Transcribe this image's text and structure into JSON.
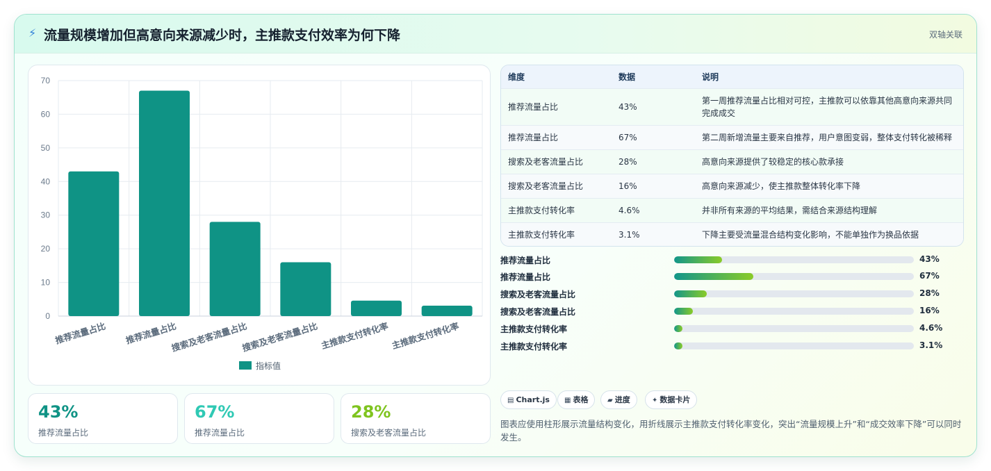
{
  "header": {
    "icon": "lightning-icon",
    "title": "流量规模增加但高意向来源减少时，主推款支付效率为何下降",
    "tag": "双轴关联"
  },
  "chart_data": {
    "type": "bar",
    "categories": [
      "推荐流量占比",
      "推荐流量占比",
      "搜索及老客流量占比",
      "搜索及老客流量占比",
      "主推款支付转化率",
      "主推款支付转化率"
    ],
    "series": [
      {
        "name": "指标值",
        "values": [
          43,
          67,
          28,
          16,
          4.6,
          3.1
        ],
        "color": "#0f9385"
      }
    ],
    "ylim": [
      0,
      70
    ],
    "yticks": [
      0,
      10,
      20,
      30,
      40,
      50,
      60,
      70
    ],
    "grid": true,
    "legend": "bottom"
  },
  "stats": [
    {
      "value": "43%",
      "label": "推荐流量占比",
      "color": "#0f9385"
    },
    {
      "value": "67%",
      "label": "推荐流量占比",
      "color": "#2fc9b4"
    },
    {
      "value": "28%",
      "label": "搜索及老客流量占比",
      "color": "#7fc41f"
    }
  ],
  "table": {
    "headers": [
      "维度",
      "数据",
      "说明"
    ],
    "rows": [
      {
        "dim": "推荐流量占比",
        "data": "43%",
        "desc": "第一周推荐流量占比相对可控，主推款可以依靠其他高意向来源共同完成成交"
      },
      {
        "dim": "推荐流量占比",
        "data": "67%",
        "desc": "第二周新增流量主要来自推荐，用户意图变弱，整体支付转化被稀释"
      },
      {
        "dim": "搜索及老客流量占比",
        "data": "28%",
        "desc": "高意向来源提供了较稳定的核心款承接"
      },
      {
        "dim": "搜索及老客流量占比",
        "data": "16%",
        "desc": "高意向来源减少，使主推款整体转化率下降"
      },
      {
        "dim": "主推款支付转化率",
        "data": "4.6%",
        "desc": "并非所有来源的平均结果，需结合来源结构理解"
      },
      {
        "dim": "主推款支付转化率",
        "data": "3.1%",
        "desc": "下降主要受流量混合结构变化影响，不能单独作为换品依据"
      }
    ]
  },
  "progress": [
    {
      "label": "推荐流量占比",
      "value": "43%",
      "fraction": 0.2
    },
    {
      "label": "推荐流量占比",
      "value": "67%",
      "fraction": 0.33
    },
    {
      "label": "搜索及老客流量占比",
      "value": "28%",
      "fraction": 0.135
    },
    {
      "label": "搜索及老客流量占比",
      "value": "16%",
      "fraction": 0.078
    },
    {
      "label": "主推款支付转化率",
      "value": "4.6%",
      "fraction": 0.035
    },
    {
      "label": "主推款支付转化率",
      "value": "3.1%",
      "fraction": 0.035
    }
  ],
  "chips": [
    {
      "icon": "chart-icon",
      "glyph": "▤",
      "label": "Chart.js"
    },
    {
      "icon": "table-icon",
      "glyph": "▦",
      "label": "表格"
    },
    {
      "icon": "progress-icon",
      "glyph": "▰",
      "label": "进度"
    },
    {
      "icon": "sparkle-icon",
      "glyph": "✦",
      "label": "数据卡片"
    }
  ],
  "note": "图表应使用柱形展示流量结构变化，用折线展示主推款支付转化率变化，突出“流量规模上升”和“成交效率下降”可以同时发生。"
}
